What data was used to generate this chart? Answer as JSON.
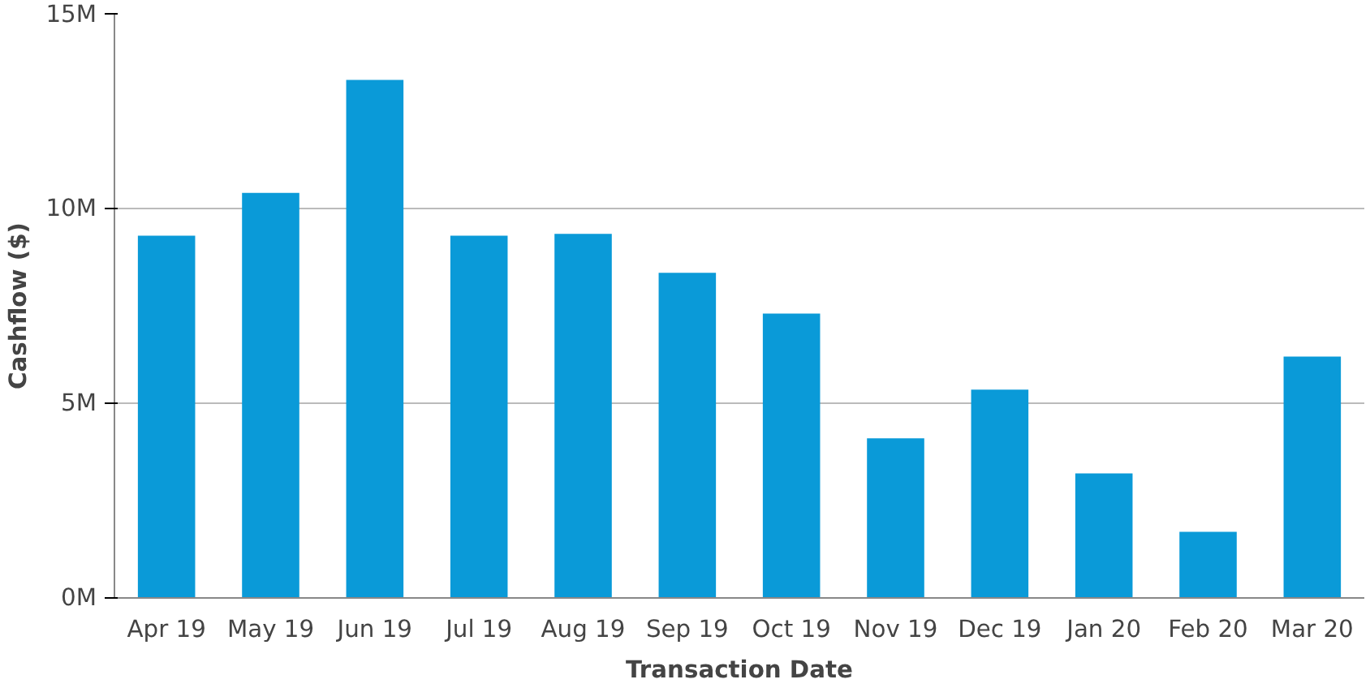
{
  "chart_data": {
    "type": "bar",
    "xlabel": "Transaction Date",
    "ylabel": "Cashflow ($)",
    "categories": [
      "Apr 19",
      "May 19",
      "Jun 19",
      "Jul 19",
      "Aug 19",
      "Sep 19",
      "Oct 19",
      "Nov 19",
      "Dec 19",
      "Jan 20",
      "Feb 20",
      "Mar 20"
    ],
    "values": [
      9.3,
      10.4,
      13.3,
      9.3,
      9.35,
      8.35,
      7.3,
      4.1,
      5.35,
      3.2,
      1.7,
      6.2
    ],
    "color": "#0a9ad8",
    "ylim": [
      0,
      15
    ],
    "yticks": [
      {
        "value": 0,
        "label": "0M"
      },
      {
        "value": 5,
        "label": "5M"
      },
      {
        "value": 10,
        "label": "10M"
      },
      {
        "value": 15,
        "label": "15M"
      }
    ],
    "grid": "y"
  }
}
